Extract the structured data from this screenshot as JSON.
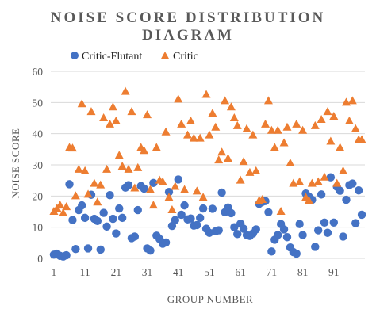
{
  "chart_data": {
    "type": "scatter",
    "title_lines": [
      "NOISE SCORE DISTRIBUTION",
      "DIAGRAM"
    ],
    "xlabel": "GROUP NUMBER",
    "ylabel": "NOISE SCORE",
    "xlim": [
      0,
      101
    ],
    "ylim": [
      0,
      60
    ],
    "x_ticks": [
      1,
      11,
      21,
      31,
      41,
      51,
      61,
      71,
      81,
      91
    ],
    "y_ticks": [
      0,
      10,
      20,
      30,
      40,
      50,
      60
    ],
    "grid": true,
    "legend_position": "top",
    "series": [
      {
        "name": "Critic-Flutant",
        "marker": "circle",
        "color": "#4472C4",
        "x": [
          1,
          2,
          3,
          4,
          5,
          6,
          7,
          8,
          9,
          10,
          11,
          12,
          13,
          14,
          15,
          16,
          17,
          18,
          19,
          20,
          21,
          22,
          23,
          24,
          25,
          26,
          27,
          28,
          29,
          30,
          31,
          32,
          33,
          34,
          35,
          36,
          37,
          38,
          39,
          40,
          41,
          42,
          43,
          44,
          45,
          46,
          47,
          48,
          49,
          50,
          51,
          52,
          53,
          54,
          55,
          56,
          57,
          58,
          59,
          60,
          61,
          62,
          63,
          64,
          65,
          66,
          67,
          68,
          69,
          70,
          71,
          72,
          73,
          74,
          75,
          76,
          77,
          78,
          79,
          80,
          81,
          82,
          83,
          84,
          85,
          86,
          87,
          88,
          89,
          90,
          91,
          92,
          93,
          94,
          95,
          96,
          97,
          98,
          99,
          100
        ],
        "y": [
          1.2,
          1.5,
          0.8,
          0.6,
          1.0,
          23.8,
          12.3,
          3.0,
          15.5,
          17.0,
          13.0,
          3.2,
          20.4,
          12.7,
          12.0,
          2.8,
          14.6,
          10.2,
          20.3,
          12.7,
          8.0,
          16.0,
          13.0,
          22.7,
          23.5,
          6.5,
          7.0,
          15.5,
          23.2,
          22.4,
          3.2,
          2.5,
          24.2,
          7.3,
          6.2,
          4.7,
          5.1,
          21.3,
          10.4,
          12.3,
          25.3,
          14.0,
          17.0,
          12.5,
          12.8,
          10.5,
          10.7,
          13.0,
          16.0,
          9.5,
          8.2,
          15.9,
          8.7,
          9.0,
          21.1,
          14.8,
          16.3,
          14.5,
          10.0,
          7.8,
          11.1,
          9.5,
          7.5,
          7.2,
          8.0,
          9.3,
          17.5,
          18.1,
          18.4,
          14.8,
          2.2,
          6.0,
          7.5,
          11.0,
          9.3,
          6.8,
          3.5,
          2.0,
          1.5,
          11.0,
          7.5,
          20.8,
          19.8,
          18.8,
          3.7,
          9.0,
          20.5,
          11.5,
          8.2,
          26.0,
          11.5,
          23.0,
          21.7,
          7.0,
          18.8,
          23.5,
          24.0,
          11.3,
          21.8,
          14.0
        ]
      },
      {
        "name": "Critic",
        "marker": "triangle",
        "color": "#ED7D31",
        "x": [
          1,
          2,
          3,
          4,
          5,
          6,
          7,
          8,
          9,
          10,
          11,
          12,
          13,
          14,
          15,
          16,
          17,
          18,
          19,
          20,
          21,
          22,
          23,
          24,
          25,
          26,
          27,
          28,
          29,
          30,
          31,
          32,
          33,
          34,
          35,
          36,
          37,
          38,
          39,
          40,
          41,
          42,
          43,
          44,
          45,
          46,
          47,
          48,
          49,
          50,
          51,
          52,
          53,
          54,
          55,
          56,
          57,
          58,
          59,
          60,
          61,
          62,
          63,
          64,
          65,
          66,
          67,
          68,
          69,
          70,
          71,
          72,
          73,
          74,
          75,
          76,
          77,
          78,
          79,
          80,
          81,
          82,
          83,
          84,
          85,
          86,
          87,
          88,
          89,
          90,
          91,
          92,
          93,
          94,
          95,
          96,
          97,
          98,
          99,
          100
        ],
        "y": [
          15.0,
          16.0,
          17.0,
          14.5,
          16.5,
          35.5,
          35.3,
          20.0,
          28.5,
          49.5,
          28.0,
          20.5,
          47.0,
          24.0,
          18.0,
          23.5,
          45.0,
          28.5,
          43.0,
          48.5,
          44.0,
          33.0,
          29.5,
          53.5,
          28.5,
          47.0,
          22.5,
          29.0,
          35.5,
          34.5,
          46.0,
          22.0,
          17.0,
          35.5,
          25.0,
          24.5,
          40.5,
          19.5,
          15.5,
          23.0,
          51.0,
          43.0,
          22.0,
          39.5,
          44.0,
          38.5,
          21.5,
          38.5,
          19.5,
          52.5,
          39.5,
          46.5,
          42.0,
          31.5,
          34.0,
          50.5,
          32.0,
          48.5,
          45.0,
          42.5,
          25.0,
          31.0,
          41.5,
          27.5,
          39.5,
          28.0,
          18.5,
          18.8,
          43.0,
          50.5,
          41.0,
          35.5,
          41.0,
          15.0,
          37.0,
          42.0,
          30.5,
          24.0,
          43.0,
          24.5,
          41.0,
          19.5,
          18.5,
          24.0,
          42.5,
          24.5,
          44.5,
          26.0,
          47.0,
          37.5,
          45.5,
          24.0,
          35.5,
          28.0,
          50.0,
          44.0,
          50.5,
          41.5,
          38.0,
          38.0
        ]
      }
    ]
  }
}
